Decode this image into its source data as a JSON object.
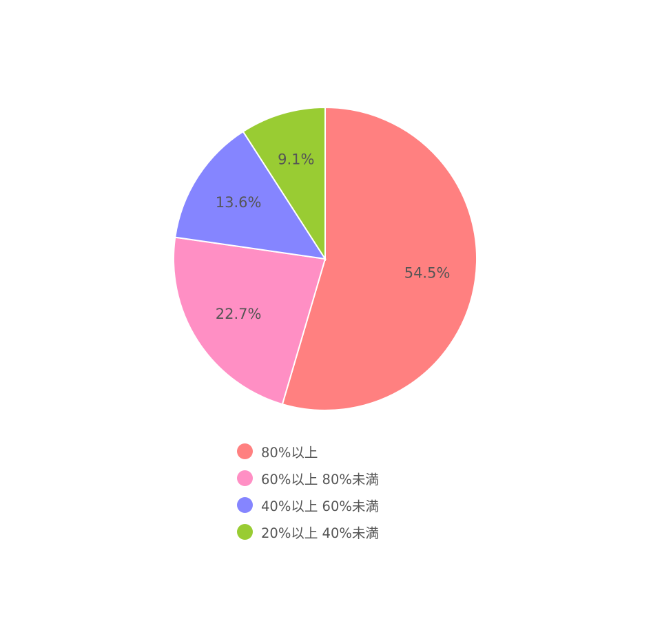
{
  "chart_data": {
    "type": "pie",
    "title": "",
    "categories": [
      "80%以上",
      "60%以上 80%未満",
      "40%以上 60%未満",
      "20%以上 40%未満"
    ],
    "values": [
      54.5,
      22.7,
      13.6,
      9.1
    ],
    "value_labels": [
      "54.5%",
      "22.7%",
      "13.6%",
      "9.1%"
    ],
    "colors": [
      "#ff8080",
      "#ff8fc4",
      "#8585ff",
      "#99cc33"
    ],
    "start_angle": "12 o'clock",
    "direction": "clockwise",
    "legend_position": "bottom",
    "slice_border_color": "#ffffff"
  }
}
